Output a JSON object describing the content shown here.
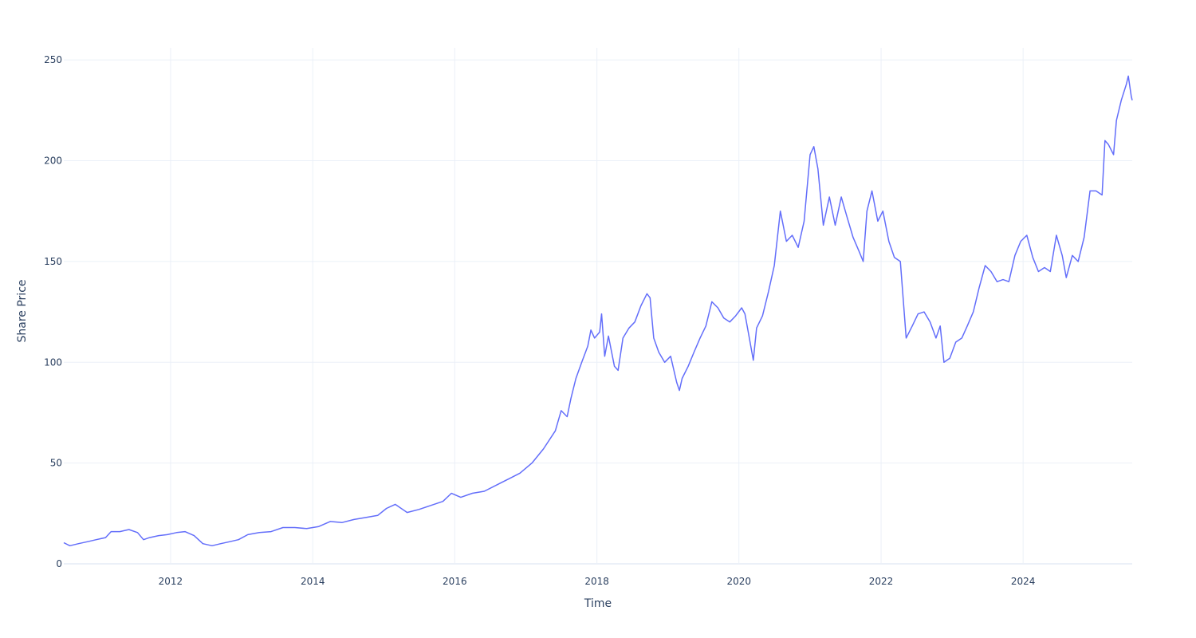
{
  "chart_data": {
    "type": "line",
    "title": "",
    "xlabel": "Time",
    "ylabel": "Share Price",
    "x_axis": "date",
    "xlim": [
      "2010-07-01",
      "2025-07-15"
    ],
    "ylim": [
      0,
      256
    ],
    "x_ticks": [
      "2012",
      "2014",
      "2016",
      "2018",
      "2020",
      "2022",
      "2024"
    ],
    "y_ticks": [
      "0",
      "50",
      "100",
      "150",
      "200",
      "250"
    ],
    "grid": true,
    "legend": "none",
    "series": [
      {
        "color": "#636efa",
        "points": [
          [
            "2010-07-01",
            10.5
          ],
          [
            "2010-08-01",
            9
          ],
          [
            "2010-09-15",
            10
          ],
          [
            "2010-11-01",
            11
          ],
          [
            "2010-12-15",
            12
          ],
          [
            "2011-02-01",
            13
          ],
          [
            "2011-03-01",
            16
          ],
          [
            "2011-04-15",
            16
          ],
          [
            "2011-06-01",
            17
          ],
          [
            "2011-07-15",
            15.5
          ],
          [
            "2011-08-15",
            12
          ],
          [
            "2011-09-15",
            13
          ],
          [
            "2011-11-01",
            14
          ],
          [
            "2011-12-15",
            14.5
          ],
          [
            "2012-02-01",
            15.5
          ],
          [
            "2012-03-15",
            16
          ],
          [
            "2012-05-01",
            14
          ],
          [
            "2012-06-15",
            10
          ],
          [
            "2012-08-01",
            9
          ],
          [
            "2012-09-15",
            10
          ],
          [
            "2012-11-01",
            11
          ],
          [
            "2012-12-15",
            12
          ],
          [
            "2013-02-01",
            14.5
          ],
          [
            "2013-04-01",
            15.5
          ],
          [
            "2013-06-01",
            16
          ],
          [
            "2013-08-01",
            18
          ],
          [
            "2013-10-01",
            18
          ],
          [
            "2013-12-01",
            17.5
          ],
          [
            "2014-02-01",
            18.5
          ],
          [
            "2014-04-01",
            21
          ],
          [
            "2014-06-01",
            20.5
          ],
          [
            "2014-08-01",
            22
          ],
          [
            "2014-10-01",
            23
          ],
          [
            "2014-12-01",
            24
          ],
          [
            "2015-01-15",
            27.5
          ],
          [
            "2015-03-01",
            29.5
          ],
          [
            "2015-05-01",
            25.5
          ],
          [
            "2015-07-01",
            27
          ],
          [
            "2015-09-01",
            29
          ],
          [
            "2015-11-01",
            31
          ],
          [
            "2015-12-15",
            35
          ],
          [
            "2016-02-01",
            33
          ],
          [
            "2016-04-01",
            35
          ],
          [
            "2016-06-01",
            36
          ],
          [
            "2016-08-01",
            39
          ],
          [
            "2016-10-01",
            42
          ],
          [
            "2016-12-01",
            45
          ],
          [
            "2017-02-01",
            50
          ],
          [
            "2017-04-01",
            57
          ],
          [
            "2017-06-01",
            66
          ],
          [
            "2017-07-01",
            76
          ],
          [
            "2017-08-01",
            73
          ],
          [
            "2017-08-20",
            82
          ],
          [
            "2017-09-15",
            92
          ],
          [
            "2017-10-15",
            100
          ],
          [
            "2017-11-15",
            108
          ],
          [
            "2017-12-01",
            116
          ],
          [
            "2017-12-20",
            112
          ],
          [
            "2018-01-15",
            115
          ],
          [
            "2018-01-25",
            124
          ],
          [
            "2018-02-10",
            103
          ],
          [
            "2018-03-01",
            113
          ],
          [
            "2018-04-01",
            98
          ],
          [
            "2018-04-20",
            96
          ],
          [
            "2018-05-15",
            112
          ],
          [
            "2018-06-15",
            117
          ],
          [
            "2018-07-15",
            120
          ],
          [
            "2018-08-15",
            128
          ],
          [
            "2018-09-15",
            134
          ],
          [
            "2018-10-01",
            132
          ],
          [
            "2018-10-20",
            112
          ],
          [
            "2018-11-15",
            105
          ],
          [
            "2018-12-15",
            100
          ],
          [
            "2019-01-15",
            103
          ],
          [
            "2019-02-15",
            90
          ],
          [
            "2019-03-01",
            86
          ],
          [
            "2019-03-15",
            92
          ],
          [
            "2019-04-15",
            98
          ],
          [
            "2019-05-15",
            105
          ],
          [
            "2019-06-15",
            112
          ],
          [
            "2019-07-15",
            118
          ],
          [
            "2019-08-15",
            130
          ],
          [
            "2019-09-15",
            127
          ],
          [
            "2019-10-15",
            122
          ],
          [
            "2019-11-15",
            120
          ],
          [
            "2019-12-15",
            123
          ],
          [
            "2020-01-15",
            127
          ],
          [
            "2020-02-01",
            124
          ],
          [
            "2020-02-20",
            114
          ],
          [
            "2020-03-15",
            101
          ],
          [
            "2020-04-01",
            117
          ],
          [
            "2020-05-01",
            123
          ],
          [
            "2020-06-01",
            135
          ],
          [
            "2020-07-01",
            148
          ],
          [
            "2020-08-01",
            175
          ],
          [
            "2020-09-01",
            160
          ],
          [
            "2020-10-01",
            163
          ],
          [
            "2020-11-01",
            157
          ],
          [
            "2020-12-01",
            170
          ],
          [
            "2021-01-01",
            203
          ],
          [
            "2021-01-20",
            207
          ],
          [
            "2021-02-10",
            196
          ],
          [
            "2021-03-10",
            168
          ],
          [
            "2021-04-10",
            182
          ],
          [
            "2021-05-10",
            168
          ],
          [
            "2021-06-10",
            182
          ],
          [
            "2021-07-10",
            172
          ],
          [
            "2021-08-10",
            162
          ],
          [
            "2021-09-10",
            155
          ],
          [
            "2021-10-01",
            150
          ],
          [
            "2021-10-20",
            175
          ],
          [
            "2021-11-15",
            185
          ],
          [
            "2021-12-15",
            170
          ],
          [
            "2022-01-10",
            175
          ],
          [
            "2022-02-10",
            160
          ],
          [
            "2022-03-10",
            152
          ],
          [
            "2022-04-10",
            150
          ],
          [
            "2022-05-10",
            112
          ],
          [
            "2022-06-10",
            118
          ],
          [
            "2022-07-10",
            124
          ],
          [
            "2022-08-10",
            125
          ],
          [
            "2022-09-10",
            120
          ],
          [
            "2022-10-10",
            112
          ],
          [
            "2022-11-01",
            118
          ],
          [
            "2022-11-20",
            100
          ],
          [
            "2022-12-20",
            102
          ],
          [
            "2023-01-20",
            110
          ],
          [
            "2023-02-20",
            112
          ],
          [
            "2023-03-20",
            118
          ],
          [
            "2023-04-20",
            125
          ],
          [
            "2023-05-20",
            137
          ],
          [
            "2023-06-20",
            148
          ],
          [
            "2023-07-20",
            145
          ],
          [
            "2023-08-20",
            140
          ],
          [
            "2023-09-20",
            141
          ],
          [
            "2023-10-20",
            140
          ],
          [
            "2023-11-20",
            153
          ],
          [
            "2023-12-20",
            160
          ],
          [
            "2024-01-20",
            163
          ],
          [
            "2024-02-20",
            152
          ],
          [
            "2024-03-20",
            145
          ],
          [
            "2024-04-20",
            147
          ],
          [
            "2024-05-20",
            145
          ],
          [
            "2024-06-20",
            163
          ],
          [
            "2024-07-20",
            153
          ],
          [
            "2024-08-10",
            142
          ],
          [
            "2024-09-10",
            153
          ],
          [
            "2024-10-10",
            150
          ],
          [
            "2024-11-10",
            162
          ],
          [
            "2024-12-10",
            185
          ],
          [
            "2025-01-10",
            185
          ],
          [
            "2025-02-10",
            183
          ],
          [
            "2025-02-25",
            210
          ],
          [
            "2025-03-15",
            208
          ],
          [
            "2025-04-10",
            203
          ],
          [
            "2025-04-25",
            220
          ],
          [
            "2025-05-20",
            230
          ],
          [
            "2025-06-15",
            238
          ],
          [
            "2025-06-25",
            242
          ],
          [
            "2025-07-10",
            232
          ],
          [
            "2025-07-15",
            230
          ]
        ]
      }
    ]
  }
}
